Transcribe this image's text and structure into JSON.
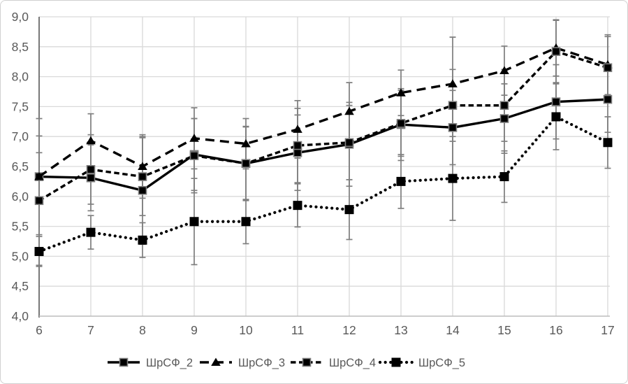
{
  "chart_data": {
    "type": "line",
    "title": "",
    "xlabel": "",
    "ylabel": "",
    "x": [
      6,
      7,
      8,
      9,
      10,
      11,
      12,
      13,
      14,
      15,
      16,
      17
    ],
    "xtick_labels": [
      "6",
      "7",
      "8",
      "9",
      "10",
      "11",
      "12",
      "13",
      "14",
      "15",
      "16",
      "17"
    ],
    "ylim": [
      4.0,
      9.0
    ],
    "ytick_step": 0.5,
    "ytick_labels": [
      "4,0",
      "4,5",
      "5,0",
      "5,5",
      "6,0",
      "6,5",
      "7,0",
      "7,5",
      "8,0",
      "8,5",
      "9,0"
    ],
    "decimal_separator": ",",
    "grid": true,
    "legend_position": "bottom",
    "error_bars": true,
    "series": [
      {
        "name": "ШрСФ_2",
        "line_style": "solid",
        "marker": "square-outlined",
        "values": [
          6.33,
          6.31,
          6.1,
          6.7,
          6.55,
          6.73,
          6.87,
          7.2,
          7.15,
          7.3,
          7.58,
          7.62
        ],
        "errors": [
          0.97,
          0.55,
          0.9,
          0.6,
          0.61,
          0.63,
          0.7,
          0.6,
          0.62,
          0.58,
          0.62,
          0.55
        ]
      },
      {
        "name": "ШрСФ_3",
        "line_style": "dashed",
        "marker": "triangle",
        "values": [
          6.33,
          6.93,
          6.5,
          6.97,
          6.88,
          7.12,
          7.42,
          7.73,
          7.88,
          8.1,
          8.48,
          8.2
        ],
        "errors": [
          0.4,
          0.45,
          0.53,
          0.51,
          0.42,
          0.48,
          0.48,
          0.38,
          0.78,
          0.41,
          0.47,
          0.5
        ]
      },
      {
        "name": "ШрСФ_4",
        "line_style": "short-dash",
        "marker": "square-outlined",
        "values": [
          5.93,
          6.45,
          6.33,
          6.68,
          6.55,
          6.85,
          6.9,
          7.22,
          7.52,
          7.52,
          8.42,
          8.15
        ],
        "errors": [
          1.08,
          0.58,
          0.65,
          0.62,
          0.62,
          0.62,
          0.62,
          0.55,
          0.6,
          0.6,
          0.52,
          0.52
        ]
      },
      {
        "name": "ШрСФ_5",
        "line_style": "dotted",
        "marker": "square-filled",
        "values": [
          5.08,
          5.4,
          5.27,
          5.58,
          5.58,
          5.85,
          5.78,
          6.25,
          6.3,
          6.33,
          7.33,
          6.9
        ],
        "errors": [
          0.25,
          0.28,
          0.29,
          0.72,
          0.37,
          0.36,
          0.5,
          0.45,
          0.7,
          0.43,
          0.55,
          0.43
        ]
      }
    ],
    "colors": {
      "series_line": "#000000",
      "marker_fill": "#000000",
      "marker_outline": "#7f7f7f",
      "error_bar": "#7f7f7f",
      "gridline": "#d9d9d9",
      "y_axis_line": "#595959",
      "x_axis_line": "#bfbfbf",
      "tick_label": "#595959",
      "legend_label": "#595959",
      "background": "#ffffff",
      "panel_border": "#d0d0d0"
    }
  }
}
